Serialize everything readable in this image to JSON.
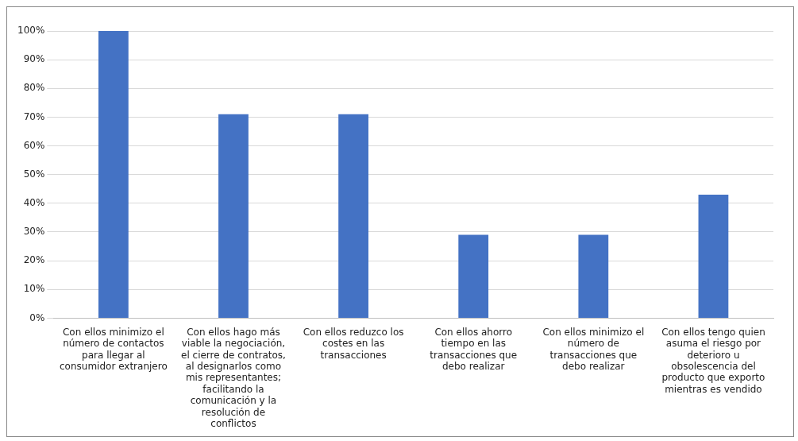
{
  "chart_data": {
    "type": "bar",
    "categories": [
      "Con ellos minimizo el número de contactos para llegar al consumidor extranjero",
      "Con ellos hago más viable la negociación, el cierre de contratos, al designarlos como mis representantes; facilitando la comunicación y la resolución de conflictos",
      "Con ellos reduzco los costes en las transacciones",
      "Con ellos ahorro tiempo en las transacciones que debo realizar",
      "Con ellos minimizo el número de transacciones que debo realizar",
      "Con ellos tengo quien asuma el riesgo por deterioro u obsolescencia del producto que exporto mientras es vendido"
    ],
    "values": [
      100,
      71,
      71,
      29,
      29,
      43
    ],
    "color": "#4472c4",
    "ylim": [
      0,
      100
    ],
    "yticks": [
      {
        "value": 0,
        "label": "0%"
      },
      {
        "value": 10,
        "label": "10%"
      },
      {
        "value": 20,
        "label": "20%"
      },
      {
        "value": 30,
        "label": "30%"
      },
      {
        "value": 40,
        "label": "40%"
      },
      {
        "value": 50,
        "label": "50%"
      },
      {
        "value": 60,
        "label": "60%"
      },
      {
        "value": 70,
        "label": "70%"
      },
      {
        "value": 80,
        "label": "80%"
      },
      {
        "value": 90,
        "label": "90%"
      },
      {
        "value": 100,
        "label": "100%"
      }
    ],
    "grid": "y",
    "legend": false
  }
}
